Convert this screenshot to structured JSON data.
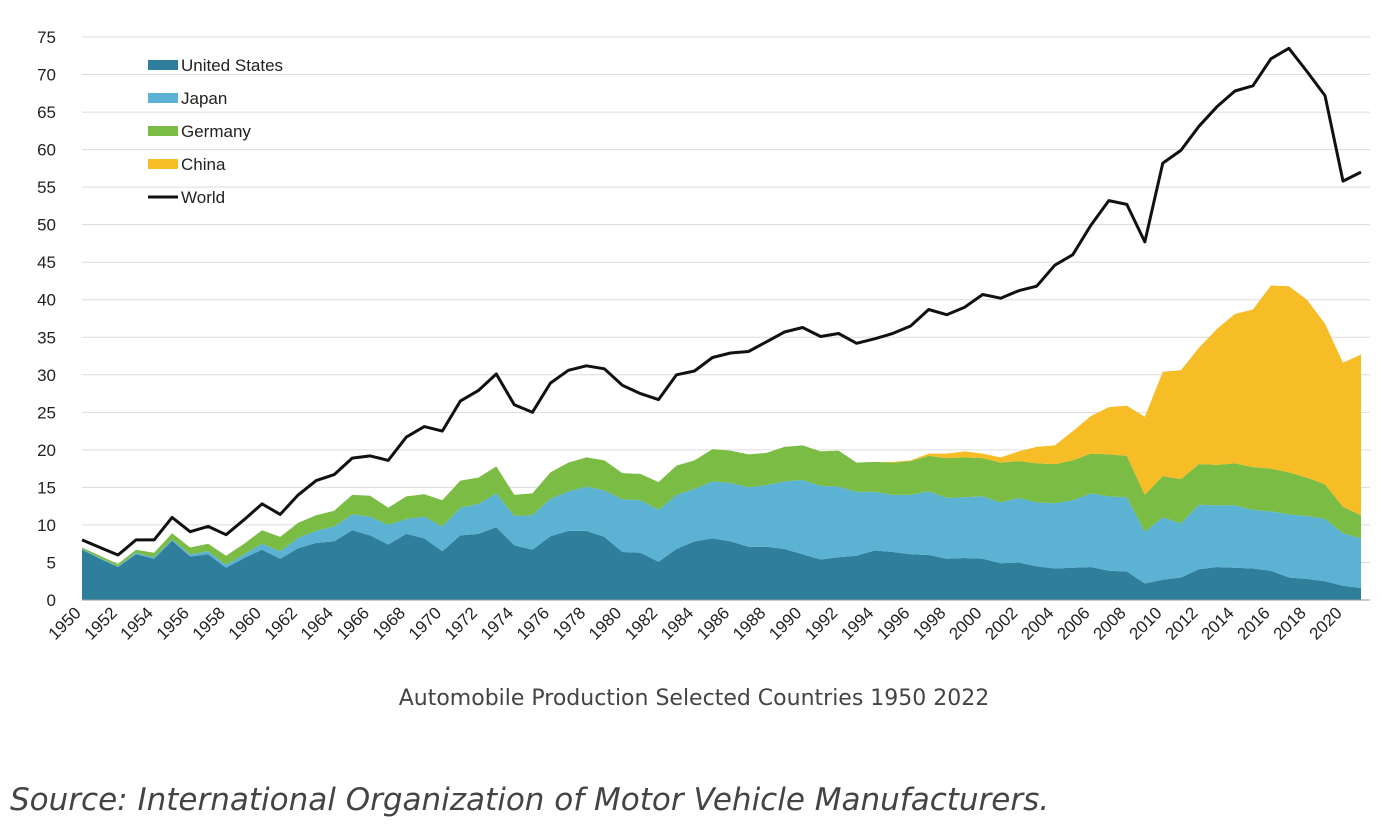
{
  "chart_data": {
    "type": "area",
    "title": "Automobile Production Selected Countries 1950 2022",
    "ylim": [
      0,
      75
    ],
    "yticks": [
      0,
      5,
      10,
      15,
      20,
      25,
      30,
      35,
      40,
      45,
      50,
      55,
      60,
      65,
      70,
      75
    ],
    "xlim": [
      1950,
      2021
    ],
    "xticks": [
      1950,
      1952,
      1954,
      1956,
      1958,
      1960,
      1962,
      1964,
      1966,
      1968,
      1970,
      1972,
      1974,
      1976,
      1978,
      1980,
      1982,
      1984,
      1986,
      1988,
      1990,
      1992,
      1994,
      1996,
      1998,
      2000,
      2002,
      2004,
      2006,
      2008,
      2010,
      2012,
      2014,
      2016,
      2018,
      2020
    ],
    "grid": "horizontal",
    "legend_position": "top-left",
    "stacked": true,
    "x": [
      1950,
      1951,
      1952,
      1953,
      1954,
      1955,
      1956,
      1957,
      1958,
      1959,
      1960,
      1961,
      1962,
      1963,
      1964,
      1965,
      1966,
      1967,
      1968,
      1969,
      1970,
      1971,
      1972,
      1973,
      1974,
      1975,
      1976,
      1977,
      1978,
      1979,
      1980,
      1981,
      1982,
      1983,
      1984,
      1985,
      1986,
      1987,
      1988,
      1989,
      1990,
      1991,
      1992,
      1993,
      1994,
      1995,
      1996,
      1997,
      1998,
      1999,
      2000,
      2001,
      2002,
      2003,
      2004,
      2005,
      2006,
      2007,
      2008,
      2009,
      2010,
      2011,
      2012,
      2013,
      2014,
      2015,
      2016,
      2017,
      2018,
      2019,
      2020,
      2021
    ],
    "series": [
      {
        "name": "United States",
        "color": "#2e7e9c",
        "values": [
          6.7,
          5.5,
          4.4,
          6.1,
          5.5,
          7.9,
          5.8,
          6.1,
          4.3,
          5.6,
          6.7,
          5.5,
          6.9,
          7.6,
          7.8,
          9.3,
          8.6,
          7.4,
          8.8,
          8.2,
          6.5,
          8.6,
          8.8,
          9.7,
          7.3,
          6.7,
          8.5,
          9.2,
          9.2,
          8.4,
          6.4,
          6.3,
          5.1,
          6.8,
          7.8,
          8.2,
          7.8,
          7.1,
          7.1,
          6.8,
          6.1,
          5.4,
          5.7,
          5.9,
          6.6,
          6.4,
          6.1,
          6.0,
          5.5,
          5.6,
          5.5,
          4.9,
          5.0,
          4.5,
          4.2,
          4.3,
          4.4,
          3.9,
          3.8,
          2.2,
          2.7,
          3.0,
          4.1,
          4.4,
          4.3,
          4.2,
          3.9,
          3.0,
          2.8,
          2.5,
          1.9,
          1.6
        ]
      },
      {
        "name": "Japan",
        "color": "#5bb2d2",
        "values": [
          0.1,
          0.1,
          0.1,
          0.2,
          0.2,
          0.2,
          0.3,
          0.4,
          0.4,
          0.5,
          0.8,
          1.0,
          1.4,
          1.6,
          2.0,
          2.1,
          2.5,
          2.6,
          2.0,
          2.9,
          3.3,
          3.7,
          4.0,
          4.5,
          3.9,
          4.6,
          5.0,
          5.3,
          5.9,
          6.2,
          7.0,
          7.0,
          6.9,
          7.2,
          7.0,
          7.6,
          7.8,
          7.9,
          8.2,
          9.0,
          9.9,
          9.8,
          9.4,
          8.5,
          7.8,
          7.6,
          7.9,
          8.5,
          8.1,
          8.1,
          8.3,
          8.1,
          8.6,
          8.5,
          8.7,
          9.0,
          9.8,
          9.9,
          9.9,
          6.9,
          8.3,
          7.2,
          8.6,
          8.2,
          8.3,
          7.8,
          7.9,
          8.4,
          8.4,
          8.3,
          7.0,
          6.6
        ]
      },
      {
        "name": "Germany",
        "color": "#7bbc44",
        "values": [
          0.2,
          0.3,
          0.3,
          0.4,
          0.6,
          0.8,
          0.9,
          1.0,
          1.2,
          1.4,
          1.8,
          1.9,
          2.0,
          2.1,
          2.1,
          2.6,
          2.8,
          2.3,
          3.0,
          3.0,
          3.5,
          3.6,
          3.5,
          3.6,
          2.8,
          2.9,
          3.5,
          3.8,
          3.9,
          4.0,
          3.5,
          3.5,
          3.7,
          3.9,
          3.8,
          4.3,
          4.3,
          4.4,
          4.3,
          4.6,
          4.6,
          4.6,
          4.8,
          3.9,
          4.0,
          4.3,
          4.5,
          4.7,
          5.3,
          5.3,
          5.1,
          5.3,
          4.9,
          5.2,
          5.2,
          5.3,
          5.3,
          5.6,
          5.5,
          4.9,
          5.5,
          5.9,
          5.4,
          5.4,
          5.6,
          5.7,
          5.7,
          5.6,
          5.1,
          4.6,
          3.5,
          3.1
        ]
      },
      {
        "name": "China",
        "color": "#f6bd27",
        "values": [
          0,
          0,
          0,
          0,
          0,
          0,
          0,
          0,
          0,
          0,
          0,
          0,
          0,
          0,
          0,
          0,
          0,
          0,
          0,
          0,
          0,
          0,
          0,
          0,
          0,
          0,
          0,
          0,
          0,
          0,
          0,
          0,
          0,
          0,
          0,
          0,
          0,
          0,
          0,
          0,
          0,
          0,
          0,
          0,
          0,
          0.1,
          0.1,
          0.3,
          0.6,
          0.8,
          0.6,
          0.7,
          1.3,
          2.2,
          2.5,
          3.9,
          5.0,
          6.3,
          6.7,
          10.4,
          13.9,
          14.5,
          15.5,
          18.1,
          19.9,
          21.0,
          24.4,
          24.8,
          23.7,
          21.4,
          19.2,
          21.4
        ]
      }
    ],
    "lines": [
      {
        "name": "World",
        "color": "#111111",
        "values": [
          8.0,
          7.0,
          6.0,
          8.0,
          8.0,
          11.0,
          9.1,
          9.8,
          8.7,
          10.7,
          12.8,
          11.4,
          14.0,
          15.9,
          16.7,
          18.9,
          19.2,
          18.6,
          21.7,
          23.1,
          22.5,
          26.5,
          27.9,
          30.1,
          26.0,
          25.0,
          28.9,
          30.6,
          31.2,
          30.8,
          28.6,
          27.5,
          26.7,
          30.0,
          30.5,
          32.3,
          32.9,
          33.1,
          34.4,
          35.7,
          36.3,
          35.1,
          35.5,
          34.2,
          34.8,
          35.5,
          36.5,
          38.7,
          38.0,
          39.0,
          40.7,
          40.2,
          41.2,
          41.8,
          44.6,
          46.0,
          49.9,
          53.2,
          52.7,
          47.7,
          58.2,
          59.9,
          63.1,
          65.7,
          67.8,
          68.5,
          72.1,
          73.5,
          70.4,
          67.2,
          55.8,
          57.0
        ]
      }
    ]
  },
  "source_text": "Source: International Organization of Motor Vehicle Manufacturers."
}
